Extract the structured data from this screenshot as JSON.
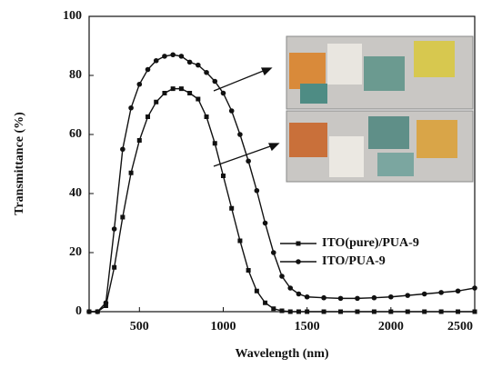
{
  "chart_data": {
    "type": "line",
    "x_label": "Wavelength (nm)",
    "y_label": "Transmittance (%)",
    "x": [
      200,
      250,
      300,
      350,
      400,
      450,
      500,
      550,
      600,
      650,
      700,
      750,
      800,
      850,
      900,
      950,
      1000,
      1050,
      1100,
      1150,
      1200,
      1250,
      1300,
      1350,
      1400,
      1450,
      1500,
      1600,
      1700,
      1800,
      1900,
      2000,
      2100,
      2200,
      2300,
      2400,
      2500
    ],
    "series": [
      {
        "name": "ITO(pure)/PUA-9",
        "color": "#111111",
        "marker": "square",
        "values": [
          0,
          0,
          2,
          15,
          32,
          47,
          58,
          66,
          71,
          74,
          75.5,
          75.5,
          74,
          72,
          66,
          57,
          46,
          35,
          24,
          14,
          7,
          3,
          1,
          0.3,
          0,
          0,
          0,
          0,
          0,
          0,
          0,
          0,
          0,
          0,
          0,
          0,
          0
        ]
      },
      {
        "name": "ITO/PUA-9",
        "color": "#111111",
        "marker": "circle",
        "values": [
          0,
          0,
          3,
          28,
          55,
          69,
          77,
          82,
          85,
          86.5,
          87,
          86.5,
          84.5,
          83.5,
          81,
          78,
          74,
          68,
          60,
          51,
          41,
          30,
          20,
          12,
          8,
          6,
          5,
          4.7,
          4.5,
          4.5,
          4.7,
          5,
          5.5,
          6,
          6.5,
          7,
          8
        ]
      }
    ],
    "xlim": [
      200,
      2500
    ],
    "xticks": [
      500,
      1000,
      1500,
      2000,
      2500
    ],
    "ylim": [
      0,
      100
    ],
    "yticks": [
      0,
      20,
      40,
      60,
      80,
      100
    ],
    "legend": "right"
  }
}
